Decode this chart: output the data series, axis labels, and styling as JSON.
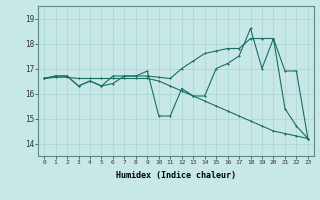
{
  "xlabel": "Humidex (Indice chaleur)",
  "bg_color": "#c8e8e8",
  "grid_color": "#b0d8d8",
  "line_color": "#1a6e60",
  "x_ticks": [
    0,
    1,
    2,
    3,
    4,
    5,
    6,
    7,
    8,
    9,
    10,
    11,
    12,
    13,
    14,
    15,
    16,
    17,
    18,
    19,
    20,
    21,
    22,
    23
  ],
  "y_ticks": [
    14,
    15,
    16,
    17,
    18,
    19
  ],
  "xlim": [
    -0.5,
    23.5
  ],
  "ylim": [
    13.5,
    19.5
  ],
  "series1_x": [
    0,
    1,
    2,
    3,
    4,
    5,
    6,
    7,
    8,
    9,
    10,
    11,
    12,
    13,
    14,
    15,
    16,
    17,
    18,
    19,
    20,
    21,
    22,
    23
  ],
  "series1_y": [
    16.6,
    16.7,
    16.7,
    16.3,
    16.5,
    16.3,
    16.4,
    16.7,
    16.7,
    16.7,
    16.65,
    16.6,
    17.0,
    17.3,
    17.6,
    17.7,
    17.8,
    17.8,
    18.2,
    18.2,
    18.2,
    16.9,
    16.9,
    14.2
  ],
  "series2_x": [
    0,
    1,
    2,
    3,
    4,
    5,
    6,
    7,
    8,
    9,
    10,
    11,
    12,
    13,
    14,
    15,
    16,
    17,
    18,
    19,
    20,
    21,
    22,
    23
  ],
  "series2_y": [
    16.6,
    16.7,
    16.7,
    16.3,
    16.5,
    16.3,
    16.7,
    16.7,
    16.7,
    16.9,
    15.1,
    15.1,
    16.2,
    15.9,
    15.9,
    17.0,
    17.2,
    17.5,
    18.6,
    17.0,
    18.2,
    15.4,
    14.7,
    14.2
  ],
  "series3_x": [
    0,
    1,
    2,
    3,
    4,
    5,
    6,
    7,
    8,
    9,
    10,
    11,
    12,
    13,
    14,
    15,
    16,
    17,
    18,
    19,
    20,
    21,
    22,
    23
  ],
  "series3_y": [
    16.6,
    16.65,
    16.65,
    16.6,
    16.6,
    16.6,
    16.6,
    16.6,
    16.6,
    16.6,
    16.5,
    16.3,
    16.1,
    15.9,
    15.7,
    15.5,
    15.3,
    15.1,
    14.9,
    14.7,
    14.5,
    14.4,
    14.3,
    14.2
  ]
}
